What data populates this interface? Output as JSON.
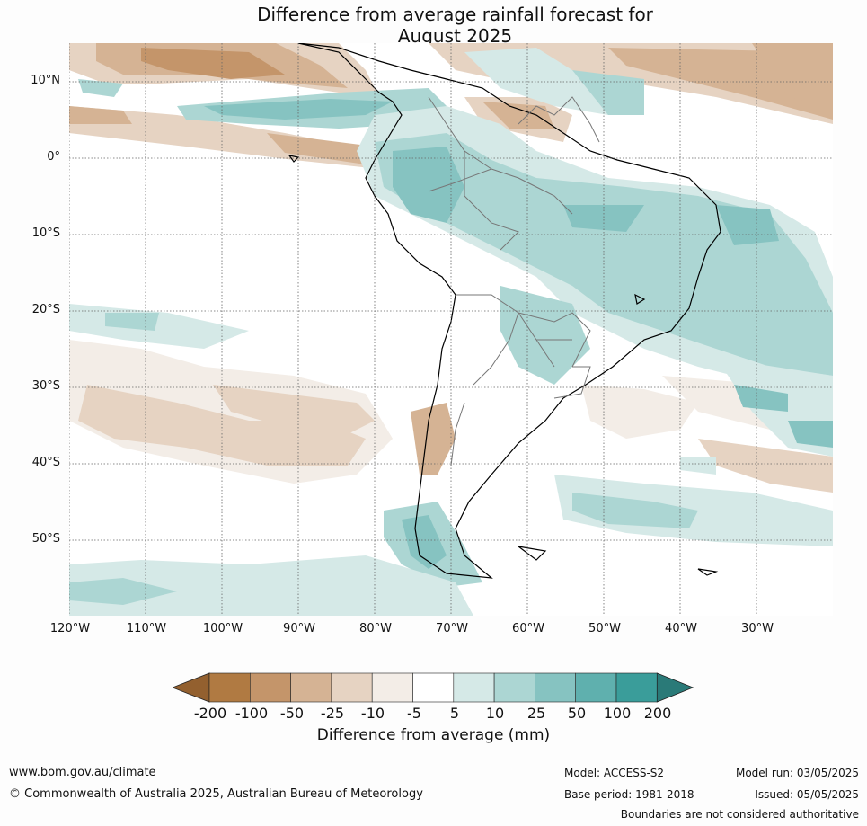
{
  "title_line1": "Difference from average rainfall forecast for",
  "title_line2": "August 2025",
  "lat_labels": [
    "10°N",
    "0°",
    "10°S",
    "20°S",
    "30°S",
    "40°S",
    "50°S"
  ],
  "lon_labels": [
    "120°W",
    "110°W",
    "100°W",
    "90°W",
    "80°W",
    "70°W",
    "60°W",
    "50°W",
    "40°W",
    "30°W"
  ],
  "colorbar": {
    "ticks": [
      "-200",
      "-100",
      "-50",
      "-25",
      "-10",
      "-5",
      "5",
      "10",
      "25",
      "50",
      "100",
      "200"
    ],
    "colors": [
      "#93602f",
      "#b07a42",
      "#c4956a",
      "#d5b394",
      "#e6d3c2",
      "#f3ede7",
      "#ffffff",
      "#d5e9e7",
      "#acd6d3",
      "#86c3c1",
      "#5fb0ae",
      "#3a9d9a",
      "#2a7a78"
    ],
    "label": "Difference from average (mm)"
  },
  "footer": {
    "website": "www.bom.gov.au/climate",
    "copyright": "© Commonwealth of Australia 2025, Australian Bureau of Meteorology",
    "model": "Model: ACCESS-S2",
    "base_period": "Base period: 1981-2018",
    "model_run": "Model run: 03/05/2025",
    "issued": "Issued: 05/05/2025",
    "disclaimer": "Boundaries are not considered authoritative"
  }
}
